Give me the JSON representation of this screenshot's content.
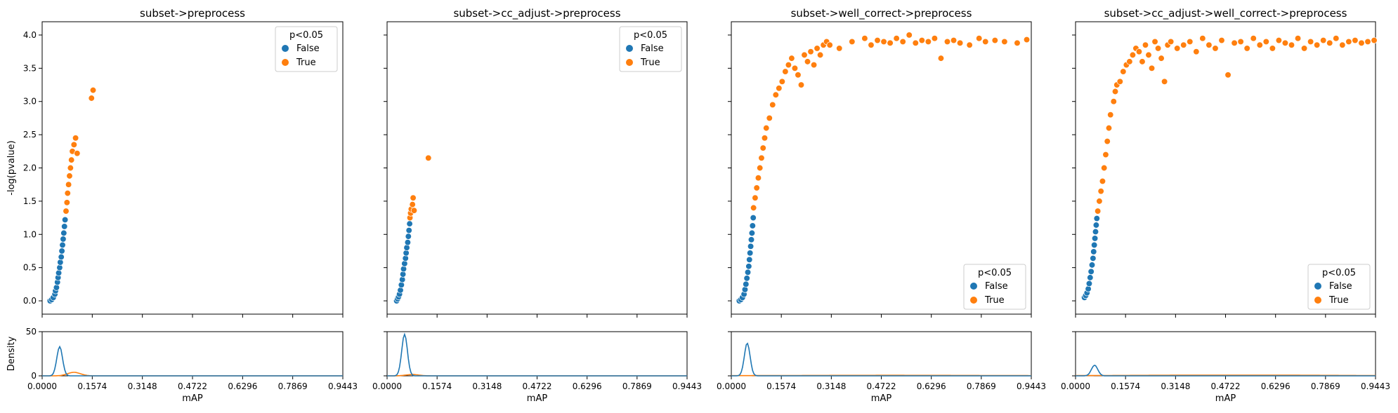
{
  "colors": {
    "false": "#1f77b4",
    "true": "#ff7f0e"
  },
  "shared": {
    "ylabel_top": "-log(pvalue)",
    "ylabel_bottom": "Density",
    "xlabel": "mAP",
    "x_ticks": [
      "0.0000",
      "0.1574",
      "0.3148",
      "0.4722",
      "0.6296",
      "0.7869",
      "0.9443"
    ],
    "y_ticks_top": [
      "0.0",
      "0.5",
      "1.0",
      "1.5",
      "2.0",
      "2.5",
      "3.0",
      "3.5",
      "4.0"
    ],
    "y_ticks_bottom": [
      "0",
      "50"
    ]
  },
  "chart_data": [
    {
      "type": "scatter",
      "title": "subset->preprocess",
      "xlim": [
        0,
        0.9443
      ],
      "ylim": [
        -0.2,
        4.2
      ],
      "legend": {
        "title": "p<0.05",
        "entries": [
          "False",
          "True"
        ],
        "placement": "top-right"
      },
      "series": [
        {
          "name": "False",
          "x": [
            0.025,
            0.03,
            0.035,
            0.04,
            0.042,
            0.045,
            0.048,
            0.05,
            0.052,
            0.055,
            0.057,
            0.06,
            0.062,
            0.064,
            0.066,
            0.068,
            0.07,
            0.072
          ],
          "y": [
            0.0,
            0.02,
            0.05,
            0.1,
            0.15,
            0.2,
            0.28,
            0.35,
            0.42,
            0.5,
            0.58,
            0.66,
            0.75,
            0.84,
            0.93,
            1.02,
            1.12,
            1.22
          ]
        },
        {
          "name": "True",
          "x": [
            0.075,
            0.078,
            0.08,
            0.083,
            0.086,
            0.089,
            0.092,
            0.095,
            0.1,
            0.105,
            0.11,
            0.155,
            0.16
          ],
          "y": [
            1.35,
            1.48,
            1.62,
            1.75,
            1.88,
            2.0,
            2.12,
            2.25,
            2.35,
            2.45,
            2.22,
            3.05,
            3.17
          ]
        }
      ],
      "density": {
        "ylim": [
          0,
          50
        ],
        "false_peak_x": 0.055,
        "false_peak": 33,
        "true_peak_x": 0.1,
        "true_peak": 4
      }
    },
    {
      "type": "scatter",
      "title": "subset->cc_adjust->preprocess",
      "xlim": [
        0,
        0.9443
      ],
      "ylim": [
        -0.2,
        4.2
      ],
      "legend": {
        "title": "p<0.05",
        "entries": [
          "False",
          "True"
        ],
        "placement": "top-right"
      },
      "series": [
        {
          "name": "False",
          "x": [
            0.03,
            0.033,
            0.036,
            0.039,
            0.042,
            0.045,
            0.048,
            0.05,
            0.052,
            0.055,
            0.058,
            0.06,
            0.062,
            0.065,
            0.067,
            0.069,
            0.071
          ],
          "y": [
            0.0,
            0.03,
            0.06,
            0.1,
            0.16,
            0.24,
            0.32,
            0.4,
            0.48,
            0.56,
            0.64,
            0.72,
            0.8,
            0.88,
            0.97,
            1.06,
            1.16
          ]
        },
        {
          "name": "True",
          "x": [
            0.072,
            0.074,
            0.076,
            0.08,
            0.082,
            0.085,
            0.13
          ],
          "y": [
            1.25,
            1.32,
            1.38,
            1.45,
            1.55,
            1.36,
            2.15
          ]
        }
      ],
      "density": {
        "ylim": [
          0,
          50
        ],
        "false_peak_x": 0.055,
        "false_peak": 47,
        "true_peak_x": 0.08,
        "true_peak": 1.5
      }
    },
    {
      "type": "scatter",
      "title": "subset->well_correct->preprocess",
      "xlim": [
        0,
        0.9443
      ],
      "ylim": [
        -0.2,
        4.2
      ],
      "legend": {
        "title": "p<0.05",
        "entries": [
          "False",
          "True"
        ],
        "placement": "lower-right"
      },
      "series": [
        {
          "name": "False",
          "x": [
            0.025,
            0.03,
            0.035,
            0.04,
            0.043,
            0.046,
            0.049,
            0.052,
            0.055,
            0.057,
            0.059,
            0.061,
            0.063,
            0.065,
            0.067,
            0.069
          ],
          "y": [
            0.0,
            0.02,
            0.05,
            0.1,
            0.17,
            0.25,
            0.34,
            0.43,
            0.52,
            0.62,
            0.72,
            0.82,
            0.92,
            1.02,
            1.13,
            1.25
          ]
        },
        {
          "name": "True",
          "x": [
            0.07,
            0.075,
            0.08,
            0.085,
            0.09,
            0.095,
            0.1,
            0.105,
            0.11,
            0.12,
            0.13,
            0.14,
            0.15,
            0.16,
            0.17,
            0.18,
            0.19,
            0.2,
            0.21,
            0.22,
            0.23,
            0.24,
            0.25,
            0.26,
            0.27,
            0.28,
            0.29,
            0.3,
            0.31,
            0.34,
            0.38,
            0.42,
            0.44,
            0.46,
            0.48,
            0.5,
            0.52,
            0.54,
            0.56,
            0.58,
            0.6,
            0.62,
            0.64,
            0.66,
            0.68,
            0.7,
            0.72,
            0.75,
            0.78,
            0.8,
            0.83,
            0.86,
            0.9,
            0.93
          ],
          "y": [
            1.4,
            1.55,
            1.7,
            1.85,
            2.0,
            2.15,
            2.3,
            2.45,
            2.6,
            2.75,
            2.95,
            3.1,
            3.2,
            3.3,
            3.45,
            3.55,
            3.65,
            3.5,
            3.4,
            3.25,
            3.7,
            3.6,
            3.75,
            3.55,
            3.8,
            3.7,
            3.85,
            3.9,
            3.85,
            3.8,
            3.9,
            3.95,
            3.85,
            3.92,
            3.9,
            3.88,
            3.95,
            3.9,
            4.0,
            3.88,
            3.92,
            3.9,
            3.95,
            3.65,
            3.9,
            3.92,
            3.88,
            3.85,
            3.95,
            3.9,
            3.92,
            3.9,
            3.88,
            3.93
          ]
        }
      ],
      "density": {
        "ylim": [
          0,
          50
        ],
        "false_peak_x": 0.05,
        "false_peak": 37,
        "true_peak_x": 0.5,
        "true_peak": 0.6
      }
    },
    {
      "type": "scatter",
      "title": "subset->cc_adjust->well_correct->preprocess",
      "xlim": [
        0,
        0.9443
      ],
      "ylim": [
        -0.2,
        4.2
      ],
      "legend": {
        "title": "p<0.05",
        "entries": [
          "False",
          "True"
        ],
        "placement": "lower-right"
      },
      "series": [
        {
          "name": "False",
          "x": [
            0.028,
            0.032,
            0.036,
            0.04,
            0.043,
            0.046,
            0.049,
            0.052,
            0.055,
            0.057,
            0.059,
            0.061,
            0.063,
            0.065,
            0.067
          ],
          "y": [
            0.05,
            0.08,
            0.12,
            0.18,
            0.26,
            0.35,
            0.44,
            0.54,
            0.64,
            0.74,
            0.84,
            0.94,
            1.04,
            1.14,
            1.24
          ]
        },
        {
          "name": "True",
          "x": [
            0.07,
            0.075,
            0.08,
            0.085,
            0.09,
            0.095,
            0.1,
            0.105,
            0.11,
            0.12,
            0.125,
            0.13,
            0.14,
            0.15,
            0.16,
            0.17,
            0.18,
            0.19,
            0.2,
            0.21,
            0.22,
            0.23,
            0.24,
            0.25,
            0.26,
            0.27,
            0.28,
            0.29,
            0.3,
            0.32,
            0.34,
            0.36,
            0.38,
            0.4,
            0.42,
            0.44,
            0.46,
            0.48,
            0.5,
            0.52,
            0.54,
            0.56,
            0.58,
            0.6,
            0.62,
            0.64,
            0.66,
            0.68,
            0.7,
            0.72,
            0.74,
            0.76,
            0.78,
            0.8,
            0.82,
            0.84,
            0.86,
            0.88,
            0.9,
            0.92,
            0.94
          ],
          "y": [
            1.35,
            1.5,
            1.65,
            1.8,
            2.0,
            2.2,
            2.4,
            2.6,
            2.8,
            3.0,
            3.15,
            3.25,
            3.3,
            3.45,
            3.55,
            3.6,
            3.7,
            3.8,
            3.75,
            3.6,
            3.85,
            3.7,
            3.5,
            3.9,
            3.8,
            3.65,
            3.3,
            3.85,
            3.9,
            3.8,
            3.85,
            3.9,
            3.75,
            3.95,
            3.85,
            3.8,
            3.92,
            3.4,
            3.88,
            3.9,
            3.8,
            3.95,
            3.85,
            3.9,
            3.8,
            3.92,
            3.88,
            3.85,
            3.95,
            3.8,
            3.9,
            3.85,
            3.92,
            3.88,
            3.95,
            3.85,
            3.9,
            3.92,
            3.88,
            3.9,
            3.92
          ]
        }
      ],
      "density": {
        "ylim": [
          0,
          50
        ],
        "false_peak_x": 0.06,
        "false_peak": 12,
        "true_peak_x": 0.5,
        "true_peak": 0.8
      }
    }
  ]
}
